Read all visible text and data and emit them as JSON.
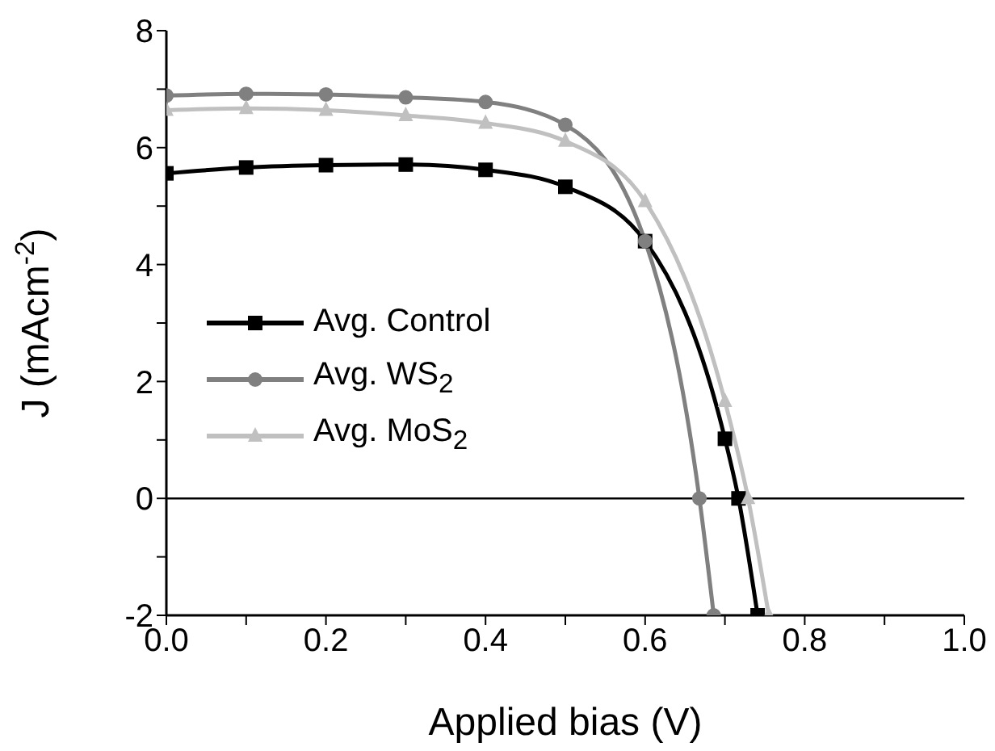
{
  "chart_data": {
    "type": "line",
    "xlabel": "Applied bias (V)",
    "ylabel": "J (mAcm$^{-2}$)",
    "xlim": [
      0,
      1
    ],
    "ylim": [
      -2,
      8
    ],
    "xticks": [
      {
        "value": 0,
        "label": "0.0"
      },
      {
        "value": 0.1,
        "label": null
      },
      {
        "value": 0.2,
        "label": "0.2"
      },
      {
        "value": 0.3,
        "label": null
      },
      {
        "value": 0.4,
        "label": "0.4"
      },
      {
        "value": 0.5,
        "label": null
      },
      {
        "value": 0.6,
        "label": "0.6"
      },
      {
        "value": 0.7,
        "label": null
      },
      {
        "value": 0.8,
        "label": "0.8"
      },
      {
        "value": 0.9,
        "label": null
      },
      {
        "value": 1.0,
        "label": "1.0"
      }
    ],
    "yticks": [
      -2,
      {
        "value": -1,
        "label": null
      },
      0,
      {
        "value": 1,
        "label": null
      },
      2,
      {
        "value": 3,
        "label": null
      },
      4,
      {
        "value": 5,
        "label": null
      },
      6,
      {
        "value": 7,
        "label": null
      },
      8
    ],
    "ref_lines": [
      {
        "axis": "y",
        "value": 0,
        "color": "#000000"
      }
    ],
    "legend": "left",
    "series": [
      {
        "name": "Avg. Control",
        "color": "#000000",
        "marker": "square",
        "x": [
          0,
          0.1,
          0.2,
          0.3,
          0.4,
          0.5,
          0.6,
          0.7,
          0.717,
          0.741
        ],
        "values": [
          5.56,
          5.66,
          5.7,
          5.71,
          5.62,
          5.33,
          4.4,
          1.02,
          0,
          -2
        ]
      },
      {
        "name": "Avg. WS$_{2}$",
        "color": "#808080",
        "marker": "circle",
        "x": [
          0,
          0.1,
          0.2,
          0.3,
          0.4,
          0.5,
          0.6,
          0.668,
          0.686
        ],
        "values": [
          6.89,
          6.92,
          6.91,
          6.86,
          6.78,
          6.39,
          4.4,
          0,
          -2
        ]
      },
      {
        "name": "Avg. MoS$_{2}$",
        "color": "#c0c0c0",
        "marker": "triangle",
        "x": [
          0,
          0.1,
          0.2,
          0.3,
          0.4,
          0.5,
          0.6,
          0.7,
          0.729,
          0.755
        ],
        "values": [
          6.64,
          6.67,
          6.64,
          6.55,
          6.42,
          6.11,
          5.08,
          1.66,
          0,
          -2
        ]
      }
    ]
  }
}
